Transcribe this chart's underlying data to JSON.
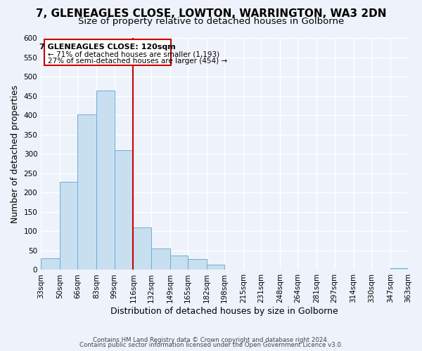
{
  "title": "7, GLENEAGLES CLOSE, LOWTON, WARRINGTON, WA3 2DN",
  "subtitle": "Size of property relative to detached houses in Golborne",
  "xlabel": "Distribution of detached houses by size in Golborne",
  "ylabel": "Number of detached properties",
  "bin_labels": [
    "33sqm",
    "50sqm",
    "66sqm",
    "83sqm",
    "99sqm",
    "116sqm",
    "132sqm",
    "149sqm",
    "165sqm",
    "182sqm",
    "198sqm",
    "215sqm",
    "231sqm",
    "248sqm",
    "264sqm",
    "281sqm",
    "297sqm",
    "314sqm",
    "330sqm",
    "347sqm",
    "363sqm"
  ],
  "bar_heights": [
    30,
    228,
    402,
    463,
    309,
    110,
    55,
    37,
    28,
    13,
    0,
    0,
    0,
    0,
    0,
    0,
    0,
    0,
    0,
    4,
    0
  ],
  "bar_color": "#c8dff0",
  "bar_edge_color": "#6baed6",
  "property_line_x": 116,
  "property_line_label": "7 GLENEAGLES CLOSE: 120sqm",
  "annotation_left": "← 71% of detached houses are smaller (1,193)",
  "annotation_right": "27% of semi-detached houses are larger (454) →",
  "ylim": [
    0,
    600
  ],
  "yticks": [
    0,
    50,
    100,
    150,
    200,
    250,
    300,
    350,
    400,
    450,
    500,
    550,
    600
  ],
  "footer1": "Contains HM Land Registry data © Crown copyright and database right 2024.",
  "footer2": "Contains public sector information licensed under the Open Government Licence v3.0.",
  "bin_edges": [
    33,
    50,
    66,
    83,
    99,
    116,
    132,
    149,
    165,
    182,
    198,
    215,
    231,
    248,
    264,
    281,
    297,
    314,
    330,
    347,
    363
  ],
  "background_color": "#eef2fa",
  "grid_color": "#ffffff",
  "title_fontsize": 11,
  "subtitle_fontsize": 9.5,
  "axis_label_fontsize": 9,
  "tick_fontsize": 7.5
}
